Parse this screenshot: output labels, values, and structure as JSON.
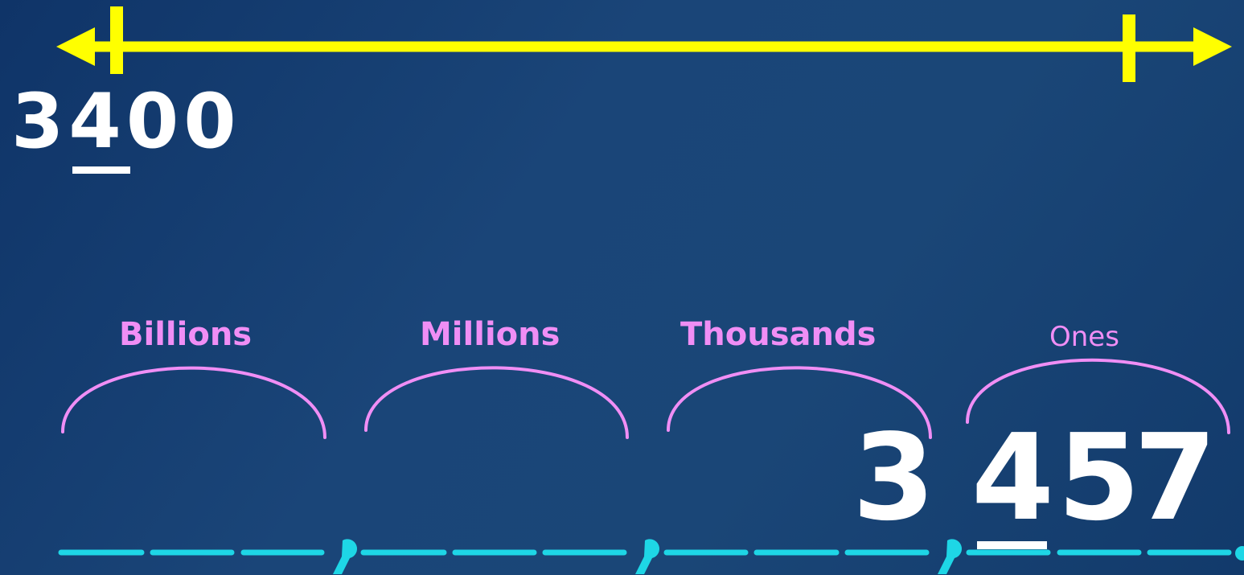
{
  "top_number": {
    "digits": [
      "3",
      "4",
      "0",
      "0"
    ],
    "underlined_digit": "4"
  },
  "number_line": {
    "color": "#ffff00"
  },
  "periods": [
    {
      "label": "Billions",
      "weight": "bold"
    },
    {
      "label": "Millions",
      "weight": "bold"
    },
    {
      "label": "Thousands",
      "weight": "bold"
    },
    {
      "label": "Ones",
      "weight": "normal"
    }
  ],
  "bottom_number": {
    "thousands_digit": "3",
    "ones_digits": [
      "4",
      "5",
      "7"
    ],
    "underlined_digit": "4"
  },
  "colors": {
    "background": "#1a4578",
    "period_label": "#f08ef5",
    "bracket": "#f08ef5",
    "place_blanks": "#1ed6e6",
    "number_text": "#ffffff"
  }
}
